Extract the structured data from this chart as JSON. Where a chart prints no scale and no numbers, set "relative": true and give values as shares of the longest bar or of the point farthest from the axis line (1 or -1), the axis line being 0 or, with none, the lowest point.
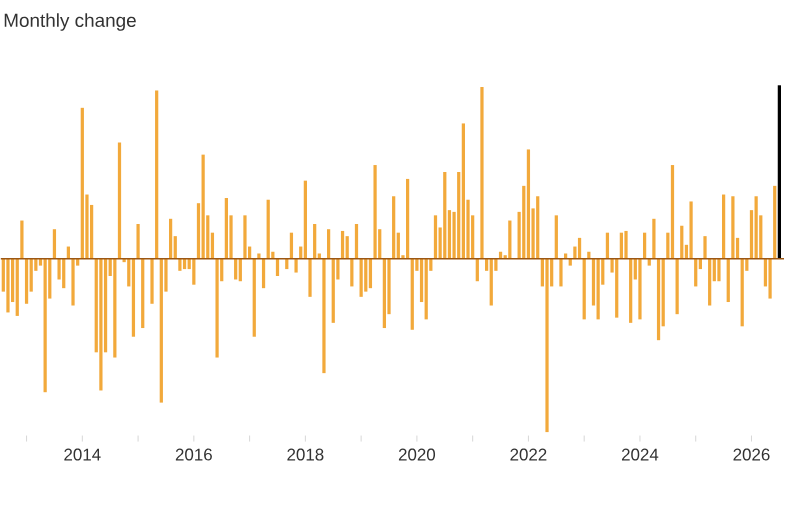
{
  "chart_data": {
    "type": "bar",
    "title": "Monthly change",
    "relative": true,
    "x": [
      "2012-08",
      "2012-09",
      "2012-10",
      "2012-11",
      "2012-12",
      "2013-01",
      "2013-02",
      "2013-03",
      "2013-04",
      "2013-05",
      "2013-06",
      "2013-07",
      "2013-08",
      "2013-09",
      "2013-10",
      "2013-11",
      "2013-12",
      "2014-01",
      "2014-02",
      "2014-03",
      "2014-04",
      "2014-05",
      "2014-06",
      "2014-07",
      "2014-08",
      "2014-09",
      "2014-10",
      "2014-11",
      "2014-12",
      "2015-01",
      "2015-02",
      "2015-03",
      "2015-04",
      "2015-05",
      "2015-06",
      "2015-07",
      "2015-08",
      "2015-09",
      "2015-10",
      "2015-11",
      "2015-12",
      "2016-01",
      "2016-02",
      "2016-03",
      "2016-04",
      "2016-05",
      "2016-06",
      "2016-07",
      "2016-08",
      "2016-09",
      "2016-10",
      "2016-11",
      "2016-12",
      "2017-01",
      "2017-02",
      "2017-03",
      "2017-04",
      "2017-05",
      "2017-06",
      "2017-07",
      "2017-08",
      "2017-09",
      "2017-10",
      "2017-11",
      "2017-12",
      "2018-01",
      "2018-02",
      "2018-03",
      "2018-04",
      "2018-05",
      "2018-06",
      "2018-07",
      "2018-08",
      "2018-09",
      "2018-10",
      "2018-11",
      "2018-12",
      "2019-01",
      "2019-02",
      "2019-03",
      "2019-04",
      "2019-05",
      "2019-06",
      "2019-07",
      "2019-08",
      "2019-09",
      "2019-10",
      "2019-11",
      "2019-12",
      "2020-01",
      "2020-02",
      "2020-03",
      "2020-04",
      "2020-05",
      "2020-06",
      "2020-07",
      "2020-08",
      "2020-09",
      "2020-10",
      "2020-11",
      "2020-12",
      "2021-01",
      "2021-02",
      "2021-03",
      "2021-04",
      "2021-05",
      "2021-06",
      "2021-07",
      "2021-08",
      "2021-09",
      "2021-10",
      "2021-11",
      "2021-12",
      "2022-01",
      "2022-02",
      "2022-03",
      "2022-04",
      "2022-05",
      "2022-06",
      "2022-07",
      "2022-08",
      "2022-09",
      "2022-10",
      "2022-11",
      "2022-12",
      "2023-01",
      "2023-02",
      "2023-03",
      "2023-04",
      "2023-05",
      "2023-06",
      "2023-07",
      "2023-08",
      "2023-09",
      "2023-10",
      "2023-11",
      "2023-12",
      "2024-01",
      "2024-02",
      "2024-03",
      "2024-04",
      "2024-05",
      "2024-06",
      "2024-07",
      "2024-08",
      "2024-09",
      "2024-10",
      "2024-11",
      "2024-12",
      "2025-01",
      "2025-02",
      "2025-03",
      "2025-04",
      "2025-05",
      "2025-06",
      "2025-07",
      "2025-08",
      "2025-09",
      "2025-10",
      "2025-11",
      "2025-12",
      "2026-01",
      "2026-02",
      "2026-03",
      "2026-04",
      "2026-05",
      "2026-06",
      "2026-07"
    ],
    "values": [
      -0.19,
      -0.31,
      -0.25,
      -0.33,
      0.22,
      -0.26,
      -0.19,
      -0.07,
      -0.04,
      -0.77,
      -0.23,
      0.17,
      -0.12,
      -0.17,
      0.07,
      -0.27,
      -0.04,
      0.87,
      0.37,
      0.31,
      -0.54,
      -0.76,
      -0.54,
      -0.1,
      -0.57,
      0.67,
      -0.02,
      -0.16,
      -0.45,
      0.2,
      -0.4,
      null,
      -0.26,
      0.97,
      -0.83,
      -0.19,
      0.23,
      0.13,
      -0.07,
      -0.06,
      -0.06,
      -0.15,
      0.32,
      0.6,
      0.25,
      0.15,
      -0.57,
      -0.13,
      0.35,
      0.25,
      -0.12,
      -0.13,
      0.25,
      0.07,
      -0.45,
      0.03,
      -0.17,
      0.34,
      0.04,
      -0.1,
      null,
      -0.06,
      0.15,
      -0.08,
      0.07,
      0.45,
      -0.22,
      0.2,
      0.03,
      -0.66,
      0.17,
      -0.37,
      -0.12,
      0.16,
      0.13,
      -0.16,
      0.2,
      -0.22,
      -0.19,
      -0.17,
      0.54,
      0.17,
      -0.4,
      -0.32,
      0.36,
      0.15,
      0.02,
      0.46,
      -0.41,
      -0.07,
      -0.25,
      -0.35,
      -0.07,
      0.25,
      0.18,
      0.5,
      0.28,
      0.27,
      0.5,
      0.78,
      0.34,
      0.25,
      -0.13,
      0.99,
      -0.07,
      -0.27,
      -0.07,
      0.04,
      0.02,
      0.22,
      null,
      0.27,
      0.42,
      0.63,
      0.29,
      0.36,
      -0.16,
      -1,
      -0.16,
      0.25,
      -0.16,
      0.03,
      -0.04,
      0.07,
      0.12,
      -0.35,
      0.04,
      -0.27,
      -0.35,
      -0.15,
      0.15,
      -0.08,
      -0.34,
      0.15,
      0.16,
      -0.37,
      -0.12,
      -0.35,
      0.15,
      -0.04,
      0.23,
      -0.47,
      -0.39,
      0.15,
      0.54,
      -0.32,
      0.19,
      0.08,
      0.33,
      -0.16,
      -0.06,
      0.13,
      -0.27,
      -0.13,
      -0.13,
      0.37,
      -0.25,
      0.36,
      0.12,
      -0.39,
      -0.07,
      0.28,
      0.36,
      0.25,
      -0.16,
      -0.23,
      0.42,
      1
    ],
    "colors": [
      "#f2a93b",
      "#f2a93b",
      "#f2a93b",
      "#f2a93b",
      "#f2a93b",
      "#f2a93b",
      "#f2a93b",
      "#f2a93b",
      "#f2a93b",
      "#f2a93b",
      "#f2a93b",
      "#f2a93b",
      "#f2a93b",
      "#f2a93b",
      "#f2a93b",
      "#f2a93b",
      "#f2a93b",
      "#f2a93b",
      "#f2a93b",
      "#f2a93b",
      "#f2a93b",
      "#f2a93b",
      "#f2a93b",
      "#f2a93b",
      "#f2a93b",
      "#f2a93b",
      "#f2a93b",
      "#f2a93b",
      "#f2a93b",
      "#f2a93b",
      "#f2a93b",
      "#f2a93b",
      "#f2a93b",
      "#f2a93b",
      "#f2a93b",
      "#f2a93b",
      "#f2a93b",
      "#f2a93b",
      "#f2a93b",
      "#f2a93b",
      "#f2a93b",
      "#f2a93b",
      "#f2a93b",
      "#f2a93b",
      "#f2a93b",
      "#f2a93b",
      "#f2a93b",
      "#f2a93b",
      "#f2a93b",
      "#f2a93b",
      "#f2a93b",
      "#f2a93b",
      "#f2a93b",
      "#f2a93b",
      "#f2a93b",
      "#f2a93b",
      "#f2a93b",
      "#f2a93b",
      "#f2a93b",
      "#f2a93b",
      "#f2a93b",
      "#f2a93b",
      "#f2a93b",
      "#f2a93b",
      "#f2a93b",
      "#f2a93b",
      "#f2a93b",
      "#f2a93b",
      "#f2a93b",
      "#f2a93b",
      "#f2a93b",
      "#f2a93b",
      "#f2a93b",
      "#f2a93b",
      "#f2a93b",
      "#f2a93b",
      "#f2a93b",
      "#f2a93b",
      "#f2a93b",
      "#f2a93b",
      "#f2a93b",
      "#f2a93b",
      "#f2a93b",
      "#f2a93b",
      "#f2a93b",
      "#f2a93b",
      "#f2a93b",
      "#f2a93b",
      "#f2a93b",
      "#f2a93b",
      "#f2a93b",
      "#f2a93b",
      "#f2a93b",
      "#f2a93b",
      "#f2a93b",
      "#f2a93b",
      "#f2a93b",
      "#f2a93b",
      "#f2a93b",
      "#f2a93b",
      "#f2a93b",
      "#f2a93b",
      "#f2a93b",
      "#f2a93b",
      "#f2a93b",
      "#f2a93b",
      "#f2a93b",
      "#f2a93b",
      "#f2a93b",
      "#f2a93b",
      "#f2a93b",
      "#f2a93b",
      "#f2a93b",
      "#f2a93b",
      "#f2a93b",
      "#f2a93b",
      "#f2a93b",
      "#f2a93b",
      "#f2a93b",
      "#f2a93b",
      "#f2a93b",
      "#f2a93b",
      "#f2a93b",
      "#f2a93b",
      "#f2a93b",
      "#f2a93b",
      "#f2a93b",
      "#f2a93b",
      "#f2a93b",
      "#f2a93b",
      "#f2a93b",
      "#f2a93b",
      "#f2a93b",
      "#f2a93b",
      "#f2a93b",
      "#f2a93b",
      "#f2a93b",
      "#f2a93b",
      "#f2a93b",
      "#f2a93b",
      "#f2a93b",
      "#f2a93b",
      "#f2a93b",
      "#f2a93b",
      "#f2a93b",
      "#f2a93b",
      "#f2a93b",
      "#f2a93b",
      "#f2a93b",
      "#f2a93b",
      "#f2a93b",
      "#f2a93b",
      "#f2a93b",
      "#f2a93b",
      "#f2a93b",
      "#f2a93b",
      "#f2a93b",
      "#f2a93b",
      "#f2a93b",
      "#f2a93b",
      "#f2a93b",
      "#f2a93b",
      "#f2a93b",
      "#f2a93b",
      "#f2a93b",
      "#f2a93b",
      "#f2a93b",
      "#000000"
    ],
    "xlim": [
      "2012-07-15",
      "2026-08"
    ],
    "ref_lines": [
      {
        "axis": "y",
        "value": 0,
        "color": "#9c5713"
      }
    ],
    "xticks": [
      {
        "value": "2013",
        "label": null
      },
      "2014",
      {
        "value": "2015",
        "label": null
      },
      "2016",
      {
        "value": "2017",
        "label": null
      },
      "2018",
      {
        "value": "2019",
        "label": null
      },
      "2020",
      {
        "value": "2021",
        "label": null
      },
      "2022",
      {
        "value": "2023",
        "label": null
      },
      "2024",
      {
        "value": "2025",
        "label": null
      },
      "2026"
    ]
  }
}
